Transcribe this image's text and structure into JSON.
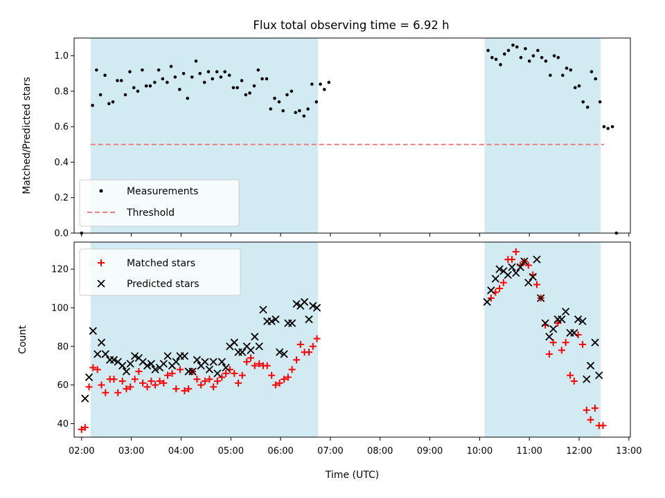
{
  "colors": {
    "shade": "#add8e6",
    "measurement": "#000000",
    "threshold": "#f08080",
    "matched": "#ff0000",
    "predicted": "#000000"
  },
  "chart_data": [
    {
      "type": "scatter",
      "title": "Flux total observing time = 6.92 h",
      "xlabel": "",
      "ylabel": "Matched/Predicted stars",
      "xlim": [
        1.85,
        13.03
      ],
      "ylim": [
        0.0,
        1.1
      ],
      "yticks": [
        0.0,
        0.2,
        0.4,
        0.6,
        0.8,
        1.0
      ],
      "ytick_labels": [
        "0.0",
        "0.2",
        "0.4",
        "0.6",
        "0.8",
        "1.0"
      ],
      "grid": false,
      "legend_position": "lower-left",
      "shaded_intervals": [
        [
          2.18,
          6.75
        ],
        [
          10.1,
          12.43
        ]
      ],
      "threshold": {
        "name": "Threshold",
        "y": 0.5,
        "x_range": [
          2.18,
          12.5
        ]
      },
      "series": [
        {
          "name": "Measurements",
          "marker": "dot",
          "points": [
            [
              2.0,
              0.0
            ],
            [
              2.22,
              0.72
            ],
            [
              2.3,
              0.92
            ],
            [
              2.38,
              0.78
            ],
            [
              2.47,
              0.89
            ],
            [
              2.55,
              0.73
            ],
            [
              2.63,
              0.74
            ],
            [
              2.72,
              0.86
            ],
            [
              2.8,
              0.86
            ],
            [
              2.88,
              0.78
            ],
            [
              2.97,
              0.91
            ],
            [
              3.05,
              0.82
            ],
            [
              3.13,
              0.8
            ],
            [
              3.22,
              0.92
            ],
            [
              3.3,
              0.83
            ],
            [
              3.38,
              0.83
            ],
            [
              3.47,
              0.85
            ],
            [
              3.55,
              0.92
            ],
            [
              3.63,
              0.87
            ],
            [
              3.72,
              0.85
            ],
            [
              3.8,
              0.94
            ],
            [
              3.88,
              0.88
            ],
            [
              3.97,
              0.81
            ],
            [
              4.05,
              0.9
            ],
            [
              4.13,
              0.76
            ],
            [
              4.22,
              0.88
            ],
            [
              4.3,
              0.97
            ],
            [
              4.38,
              0.9
            ],
            [
              4.47,
              0.85
            ],
            [
              4.55,
              0.91
            ],
            [
              4.63,
              0.87
            ],
            [
              4.72,
              0.91
            ],
            [
              4.8,
              0.88
            ],
            [
              4.88,
              0.91
            ],
            [
              4.97,
              0.89
            ],
            [
              5.05,
              0.82
            ],
            [
              5.13,
              0.82
            ],
            [
              5.22,
              0.86
            ],
            [
              5.3,
              0.78
            ],
            [
              5.38,
              0.79
            ],
            [
              5.47,
              0.83
            ],
            [
              5.55,
              0.92
            ],
            [
              5.63,
              0.87
            ],
            [
              5.72,
              0.87
            ],
            [
              5.8,
              0.7
            ],
            [
              5.88,
              0.76
            ],
            [
              5.97,
              0.74
            ],
            [
              6.05,
              0.69
            ],
            [
              6.13,
              0.78
            ],
            [
              6.22,
              0.8
            ],
            [
              6.3,
              0.68
            ],
            [
              6.38,
              0.69
            ],
            [
              6.47,
              0.66
            ],
            [
              6.55,
              0.7
            ],
            [
              6.63,
              0.84
            ],
            [
              6.72,
              0.74
            ],
            [
              6.8,
              0.84
            ],
            [
              6.88,
              0.81
            ],
            [
              6.97,
              0.85
            ],
            [
              10.17,
              1.03
            ],
            [
              10.25,
              0.99
            ],
            [
              10.33,
              0.98
            ],
            [
              10.42,
              0.95
            ],
            [
              10.5,
              1.01
            ],
            [
              10.58,
              1.03
            ],
            [
              10.67,
              1.06
            ],
            [
              10.75,
              1.05
            ],
            [
              10.83,
              0.99
            ],
            [
              10.92,
              1.04
            ],
            [
              11.0,
              0.97
            ],
            [
              11.08,
              1.0
            ],
            [
              11.17,
              1.03
            ],
            [
              11.25,
              0.99
            ],
            [
              11.33,
              0.97
            ],
            [
              11.42,
              0.89
            ],
            [
              11.5,
              1.0
            ],
            [
              11.58,
              0.99
            ],
            [
              11.67,
              0.89
            ],
            [
              11.75,
              0.93
            ],
            [
              11.83,
              0.92
            ],
            [
              11.92,
              0.82
            ],
            [
              12.0,
              0.83
            ],
            [
              12.08,
              0.74
            ],
            [
              12.17,
              0.71
            ],
            [
              12.25,
              0.91
            ],
            [
              12.33,
              0.87
            ],
            [
              12.42,
              0.74
            ],
            [
              12.5,
              0.6
            ],
            [
              12.58,
              0.59
            ],
            [
              12.67,
              0.6
            ],
            [
              12.75,
              0.0
            ]
          ]
        }
      ]
    },
    {
      "type": "scatter",
      "title": "",
      "xlabel": "Time (UTC)",
      "ylabel": "Count",
      "xlim": [
        1.85,
        13.03
      ],
      "ylim": [
        33,
        134
      ],
      "yticks": [
        40,
        60,
        80,
        100,
        120
      ],
      "ytick_labels": [
        "40",
        "60",
        "80",
        "100",
        "120"
      ],
      "xticks": [
        2,
        3,
        4,
        5,
        6,
        7,
        8,
        9,
        10,
        11,
        12,
        13
      ],
      "xtick_labels": [
        "02:00",
        "03:00",
        "04:00",
        "05:00",
        "06:00",
        "07:00",
        "08:00",
        "09:00",
        "10:00",
        "11:00",
        "12:00",
        "13:00"
      ],
      "grid": false,
      "legend_position": "upper-left",
      "shaded_intervals": [
        [
          2.18,
          6.75
        ],
        [
          10.1,
          12.43
        ]
      ],
      "series": [
        {
          "name": "Matched stars",
          "marker": "plus",
          "points": [
            [
              2.0,
              37
            ],
            [
              2.07,
              38
            ],
            [
              2.15,
              59
            ],
            [
              2.23,
              69
            ],
            [
              2.32,
              68
            ],
            [
              2.4,
              60
            ],
            [
              2.48,
              56
            ],
            [
              2.57,
              63
            ],
            [
              2.65,
              63
            ],
            [
              2.73,
              56
            ],
            [
              2.82,
              62
            ],
            [
              2.9,
              58
            ],
            [
              2.98,
              59
            ],
            [
              3.07,
              63
            ],
            [
              3.15,
              67
            ],
            [
              3.23,
              61
            ],
            [
              3.32,
              59
            ],
            [
              3.4,
              62
            ],
            [
              3.48,
              60
            ],
            [
              3.57,
              62
            ],
            [
              3.65,
              61
            ],
            [
              3.73,
              65
            ],
            [
              3.82,
              66
            ],
            [
              3.9,
              58
            ],
            [
              3.98,
              68
            ],
            [
              4.07,
              57
            ],
            [
              4.15,
              58
            ],
            [
              4.23,
              67
            ],
            [
              4.32,
              63
            ],
            [
              4.4,
              60
            ],
            [
              4.48,
              62
            ],
            [
              4.57,
              63
            ],
            [
              4.65,
              59
            ],
            [
              4.73,
              62
            ],
            [
              4.82,
              64
            ],
            [
              4.9,
              66
            ],
            [
              4.98,
              68
            ],
            [
              5.07,
              66
            ],
            [
              5.15,
              61
            ],
            [
              5.23,
              65
            ],
            [
              5.32,
              72
            ],
            [
              5.4,
              74
            ],
            [
              5.48,
              70
            ],
            [
              5.57,
              71
            ],
            [
              5.65,
              70
            ],
            [
              5.73,
              70
            ],
            [
              5.82,
              65
            ],
            [
              5.9,
              60
            ],
            [
              5.98,
              61
            ],
            [
              6.07,
              63
            ],
            [
              6.15,
              64
            ],
            [
              6.23,
              68
            ],
            [
              6.32,
              73
            ],
            [
              6.4,
              81
            ],
            [
              6.48,
              77
            ],
            [
              6.57,
              77
            ],
            [
              6.65,
              80
            ],
            [
              6.73,
              84
            ],
            [
              10.23,
              105
            ],
            [
              10.32,
              108
            ],
            [
              10.4,
              110
            ],
            [
              10.48,
              113
            ],
            [
              10.57,
              125
            ],
            [
              10.65,
              125
            ],
            [
              10.73,
              129
            ],
            [
              10.82,
              122
            ],
            [
              10.9,
              124
            ],
            [
              10.98,
              122
            ],
            [
              11.07,
              117
            ],
            [
              11.15,
              112
            ],
            [
              11.23,
              105
            ],
            [
              11.32,
              91
            ],
            [
              11.4,
              76
            ],
            [
              11.48,
              82
            ],
            [
              11.57,
              92
            ],
            [
              11.65,
              78
            ],
            [
              11.73,
              82
            ],
            [
              11.82,
              65
            ],
            [
              11.9,
              62
            ],
            [
              11.98,
              86
            ],
            [
              12.07,
              81
            ],
            [
              12.15,
              47
            ],
            [
              12.23,
              42
            ],
            [
              12.32,
              48
            ],
            [
              12.4,
              39
            ],
            [
              12.48,
              39
            ]
          ]
        },
        {
          "name": "Predicted stars",
          "marker": "x",
          "points": [
            [
              2.07,
              53
            ],
            [
              2.15,
              64
            ],
            [
              2.23,
              88
            ],
            [
              2.32,
              76
            ],
            [
              2.4,
              82
            ],
            [
              2.48,
              76
            ],
            [
              2.57,
              73
            ],
            [
              2.65,
              73
            ],
            [
              2.73,
              72
            ],
            [
              2.82,
              70
            ],
            [
              2.9,
              67
            ],
            [
              2.98,
              71
            ],
            [
              3.07,
              75
            ],
            [
              3.15,
              74
            ],
            [
              3.23,
              72
            ],
            [
              3.32,
              70
            ],
            [
              3.4,
              71
            ],
            [
              3.48,
              68
            ],
            [
              3.57,
              69
            ],
            [
              3.65,
              71
            ],
            [
              3.73,
              75
            ],
            [
              3.82,
              70
            ],
            [
              3.9,
              72
            ],
            [
              3.98,
              75
            ],
            [
              4.07,
              75
            ],
            [
              4.15,
              67
            ],
            [
              4.23,
              67
            ],
            [
              4.32,
              73
            ],
            [
              4.4,
              70
            ],
            [
              4.48,
              72
            ],
            [
              4.57,
              68
            ],
            [
              4.65,
              72
            ],
            [
              4.73,
              66
            ],
            [
              4.82,
              72
            ],
            [
              4.9,
              69
            ],
            [
              4.98,
              80
            ],
            [
              5.07,
              82
            ],
            [
              5.15,
              77
            ],
            [
              5.23,
              77
            ],
            [
              5.32,
              80
            ],
            [
              5.4,
              78
            ],
            [
              5.48,
              85
            ],
            [
              5.57,
              80
            ],
            [
              5.65,
              99
            ],
            [
              5.73,
              93
            ],
            [
              5.82,
              93
            ],
            [
              5.9,
              94
            ],
            [
              5.98,
              77
            ],
            [
              6.07,
              76
            ],
            [
              6.15,
              92
            ],
            [
              6.23,
              92
            ],
            [
              6.32,
              102
            ],
            [
              6.4,
              101
            ],
            [
              6.48,
              103
            ],
            [
              6.57,
              94
            ],
            [
              6.65,
              101
            ],
            [
              6.73,
              100
            ],
            [
              10.15,
              103
            ],
            [
              10.23,
              109
            ],
            [
              10.32,
              115
            ],
            [
              10.4,
              120
            ],
            [
              10.48,
              119
            ],
            [
              10.57,
              117
            ],
            [
              10.65,
              121
            ],
            [
              10.73,
              118
            ],
            [
              10.82,
              121
            ],
            [
              10.9,
              124
            ],
            [
              10.98,
              113
            ],
            [
              11.07,
              116
            ],
            [
              11.15,
              125
            ],
            [
              11.23,
              105
            ],
            [
              11.32,
              92
            ],
            [
              11.4,
              85
            ],
            [
              11.48,
              89
            ],
            [
              11.57,
              94
            ],
            [
              11.65,
              94
            ],
            [
              11.73,
              98
            ],
            [
              11.82,
              87
            ],
            [
              11.9,
              87
            ],
            [
              11.98,
              94
            ],
            [
              12.07,
              93
            ],
            [
              12.15,
              63
            ],
            [
              12.23,
              70
            ],
            [
              12.32,
              82
            ],
            [
              12.4,
              65
            ]
          ]
        }
      ]
    }
  ]
}
